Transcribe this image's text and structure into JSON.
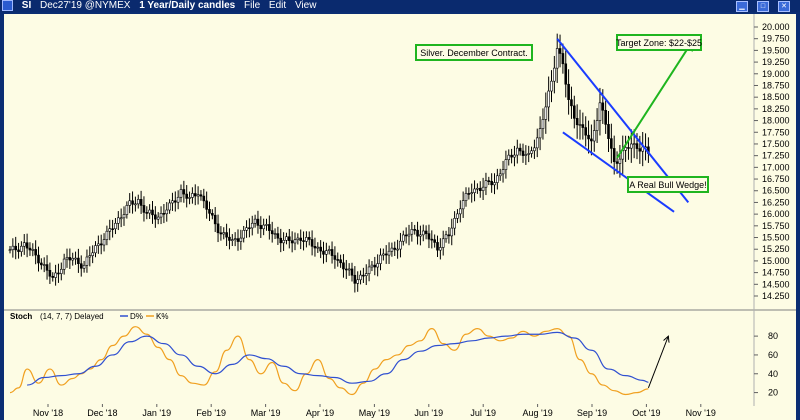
{
  "titlebar": {
    "symbol": "SI",
    "description": "Dec27'19 @NYMEX",
    "interval": "1 Year/Daily candles",
    "menu": [
      "File",
      "Edit",
      "View"
    ]
  },
  "colors": {
    "plot_bg": "#fdfce4",
    "frame": "#0b2d72",
    "candle": "#000000",
    "channel": "#1a3cff",
    "arrow": "#1fb51f",
    "d_line": "#3050d0",
    "k_line": "#f0a020"
  },
  "annotations": {
    "contract": "Silver. December Contract.",
    "target": "Target Zone: $22-$25",
    "wedge": "A Real Bull Wedge!"
  },
  "stoch_legend": {
    "name": "Stoch",
    "params": "(14, 7, 7) Delayed",
    "d_label": "D%",
    "k_label": "K%"
  },
  "chart_data": {
    "type": "candlestick",
    "x_tick_labels": [
      "Nov '18",
      "Dec '18",
      "Jan '19",
      "Feb '19",
      "Mar '19",
      "Apr '19",
      "May '19",
      "Jun '19",
      "Jul '19",
      "Aug '19",
      "Sep '19",
      "Oct '19",
      "Nov '19"
    ],
    "y_tick_labels": [
      "20.000",
      "19.750",
      "19.500",
      "19.250",
      "19.000",
      "18.750",
      "18.500",
      "18.250",
      "18.000",
      "17.750",
      "17.500",
      "17.250",
      "17.000",
      "16.750",
      "16.500",
      "16.250",
      "16.000",
      "15.750",
      "15.500",
      "15.250",
      "15.000",
      "14.750",
      "14.500",
      "14.250"
    ],
    "ylim": [
      14.25,
      20.0
    ],
    "price_path": [
      [
        0,
        15.2
      ],
      [
        5,
        15.35
      ],
      [
        10,
        15.05
      ],
      [
        15,
        14.6
      ],
      [
        19,
        15.0
      ],
      [
        22,
        15.05
      ],
      [
        26,
        14.9
      ],
      [
        30,
        15.3
      ],
      [
        34,
        15.55
      ],
      [
        38,
        15.9
      ],
      [
        42,
        16.2
      ],
      [
        45,
        16.3
      ],
      [
        48,
        16.0
      ],
      [
        52,
        15.95
      ],
      [
        56,
        16.15
      ],
      [
        60,
        16.5
      ],
      [
        63,
        16.3
      ],
      [
        66,
        16.5
      ],
      [
        70,
        16.0
      ],
      [
        74,
        15.6
      ],
      [
        78,
        15.4
      ],
      [
        82,
        15.6
      ],
      [
        86,
        15.85
      ],
      [
        90,
        15.7
      ],
      [
        94,
        15.5
      ],
      [
        98,
        15.4
      ],
      [
        102,
        15.5
      ],
      [
        106,
        15.35
      ],
      [
        110,
        15.2
      ],
      [
        114,
        15.1
      ],
      [
        118,
        14.8
      ],
      [
        121,
        14.6
      ],
      [
        124,
        14.7
      ],
      [
        127,
        14.85
      ],
      [
        130,
        15.1
      ],
      [
        134,
        15.2
      ],
      [
        138,
        15.5
      ],
      [
        142,
        15.65
      ],
      [
        146,
        15.55
      ],
      [
        150,
        15.3
      ],
      [
        154,
        15.55
      ],
      [
        158,
        16.2
      ],
      [
        162,
        16.5
      ],
      [
        166,
        16.6
      ],
      [
        170,
        16.7
      ],
      [
        174,
        17.1
      ],
      [
        178,
        17.4
      ],
      [
        182,
        17.2
      ],
      [
        186,
        17.8
      ],
      [
        188,
        18.3
      ],
      [
        190,
        18.8
      ],
      [
        192,
        19.6
      ],
      [
        194,
        19.2
      ],
      [
        196,
        18.4
      ],
      [
        198,
        18.1
      ],
      [
        201,
        17.8
      ],
      [
        204,
        17.5
      ],
      [
        207,
        18.4
      ],
      [
        209,
        17.9
      ],
      [
        212,
        17.1
      ],
      [
        215,
        17.3
      ],
      [
        218,
        17.5
      ],
      [
        222,
        17.4
      ],
      [
        224,
        17.3
      ]
    ],
    "overlays": [
      {
        "type": "line",
        "name": "channel-upper",
        "from": [
          192,
          19.75
        ],
        "to": [
          238,
          16.25
        ]
      },
      {
        "type": "line",
        "name": "channel-lower",
        "from": [
          194,
          17.75
        ],
        "to": [
          233,
          16.05
        ]
      },
      {
        "type": "arrow",
        "name": "target-arrow",
        "from": [
          213,
          17.2
        ],
        "to": [
          240,
          19.75
        ]
      }
    ],
    "stoch": {
      "ylim": [
        10,
        95
      ],
      "y_tick_labels": [
        "80",
        "60",
        "40",
        "20"
      ],
      "k": [
        [
          0,
          20
        ],
        [
          3,
          25
        ],
        [
          6,
          45
        ],
        [
          10,
          30
        ],
        [
          14,
          45
        ],
        [
          18,
          28
        ],
        [
          22,
          35
        ],
        [
          25,
          40
        ],
        [
          28,
          45
        ],
        [
          32,
          55
        ],
        [
          36,
          70
        ],
        [
          40,
          80
        ],
        [
          44,
          90
        ],
        [
          48,
          82
        ],
        [
          52,
          68
        ],
        [
          56,
          55
        ],
        [
          60,
          38
        ],
        [
          64,
          30
        ],
        [
          68,
          28
        ],
        [
          72,
          42
        ],
        [
          76,
          65
        ],
        [
          80,
          80
        ],
        [
          84,
          55
        ],
        [
          88,
          40
        ],
        [
          92,
          52
        ],
        [
          96,
          30
        ],
        [
          100,
          22
        ],
        [
          104,
          40
        ],
        [
          108,
          55
        ],
        [
          112,
          35
        ],
        [
          116,
          25
        ],
        [
          120,
          18
        ],
        [
          124,
          30
        ],
        [
          128,
          45
        ],
        [
          132,
          55
        ],
        [
          136,
          60
        ],
        [
          140,
          70
        ],
        [
          144,
          75
        ],
        [
          148,
          88
        ],
        [
          152,
          72
        ],
        [
          156,
          65
        ],
        [
          160,
          82
        ],
        [
          164,
          88
        ],
        [
          168,
          80
        ],
        [
          172,
          75
        ],
        [
          176,
          78
        ],
        [
          180,
          85
        ],
        [
          184,
          80
        ],
        [
          188,
          85
        ],
        [
          192,
          88
        ],
        [
          196,
          80
        ],
        [
          200,
          55
        ],
        [
          204,
          40
        ],
        [
          208,
          28
        ],
        [
          212,
          22
        ],
        [
          216,
          18
        ],
        [
          220,
          20
        ],
        [
          224,
          24
        ]
      ],
      "d": [
        [
          0,
          null
        ],
        [
          6,
          28
        ],
        [
          12,
          36
        ],
        [
          18,
          38
        ],
        [
          24,
          40
        ],
        [
          30,
          48
        ],
        [
          36,
          60
        ],
        [
          42,
          74
        ],
        [
          48,
          80
        ],
        [
          54,
          72
        ],
        [
          60,
          60
        ],
        [
          66,
          48
        ],
        [
          72,
          40
        ],
        [
          78,
          50
        ],
        [
          84,
          60
        ],
        [
          90,
          56
        ],
        [
          96,
          48
        ],
        [
          102,
          40
        ],
        [
          108,
          38
        ],
        [
          114,
          36
        ],
        [
          120,
          30
        ],
        [
          126,
          32
        ],
        [
          132,
          40
        ],
        [
          138,
          55
        ],
        [
          144,
          64
        ],
        [
          150,
          70
        ],
        [
          156,
          72
        ],
        [
          162,
          75
        ],
        [
          168,
          78
        ],
        [
          174,
          80
        ],
        [
          180,
          82
        ],
        [
          186,
          82
        ],
        [
          192,
          84
        ],
        [
          198,
          78
        ],
        [
          204,
          65
        ],
        [
          210,
          45
        ],
        [
          216,
          38
        ],
        [
          222,
          33
        ],
        [
          224,
          31
        ]
      ]
    }
  }
}
